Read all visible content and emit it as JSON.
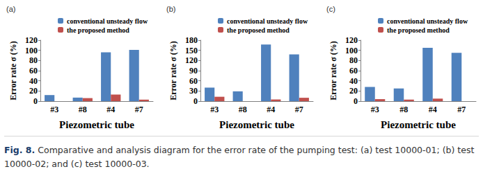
{
  "chart_data": [
    {
      "type": "bar",
      "title": "(a)",
      "x_label": "Piezometric tube",
      "y_label": "Error rate σ (%)",
      "categories": [
        "#3",
        "#8",
        "#4",
        "#7"
      ],
      "series": [
        {
          "name": "conventional unsteady flow",
          "color": "#4f81bd",
          "values": [
            12,
            7,
            96,
            101
          ]
        },
        {
          "name": "the proposed method",
          "color": "#c0504d",
          "values": [
            0,
            6,
            13,
            3
          ]
        }
      ],
      "ylim": [
        0,
        120
      ],
      "yticks": [
        0,
        20,
        40,
        60,
        80,
        100,
        120
      ],
      "grid": false,
      "legend": "top"
    },
    {
      "type": "bar",
      "title": "(b)",
      "x_label": "Piezometric tube",
      "y_label": "Error rate σ (%)",
      "categories": [
        "#3",
        "#8",
        "#4",
        "#7"
      ],
      "series": [
        {
          "name": "conventional unsteady flow",
          "color": "#4f81bd",
          "values": [
            40,
            29,
            167,
            138
          ]
        },
        {
          "name": "the proposed method",
          "color": "#c0504d",
          "values": [
            13,
            0,
            5,
            10
          ]
        }
      ],
      "ylim": [
        0,
        180
      ],
      "yticks": [
        0,
        30,
        60,
        90,
        120,
        150,
        180
      ],
      "grid": false,
      "legend": "top"
    },
    {
      "type": "bar",
      "title": "(c)",
      "x_label": "Piezometric tube",
      "y_label": "Error rate σ (%)",
      "categories": [
        "#3",
        "#8",
        "#4",
        "#7"
      ],
      "series": [
        {
          "name": "conventional unsteady flow",
          "color": "#4f81bd",
          "values": [
            28,
            25,
            105,
            95
          ]
        },
        {
          "name": "the proposed method",
          "color": "#c0504d",
          "values": [
            4,
            3,
            5,
            0
          ]
        }
      ],
      "ylim": [
        0,
        120
      ],
      "yticks": [
        0,
        20,
        40,
        60,
        80,
        100,
        120
      ],
      "grid": false,
      "legend": "top"
    }
  ],
  "caption": {
    "label": "Fig. 8.",
    "text": "Comparative and analysis diagram for the error rate of the pumping test: (a) test 10000-01; (b) test 10000-02; and (c) test 10000-03."
  }
}
